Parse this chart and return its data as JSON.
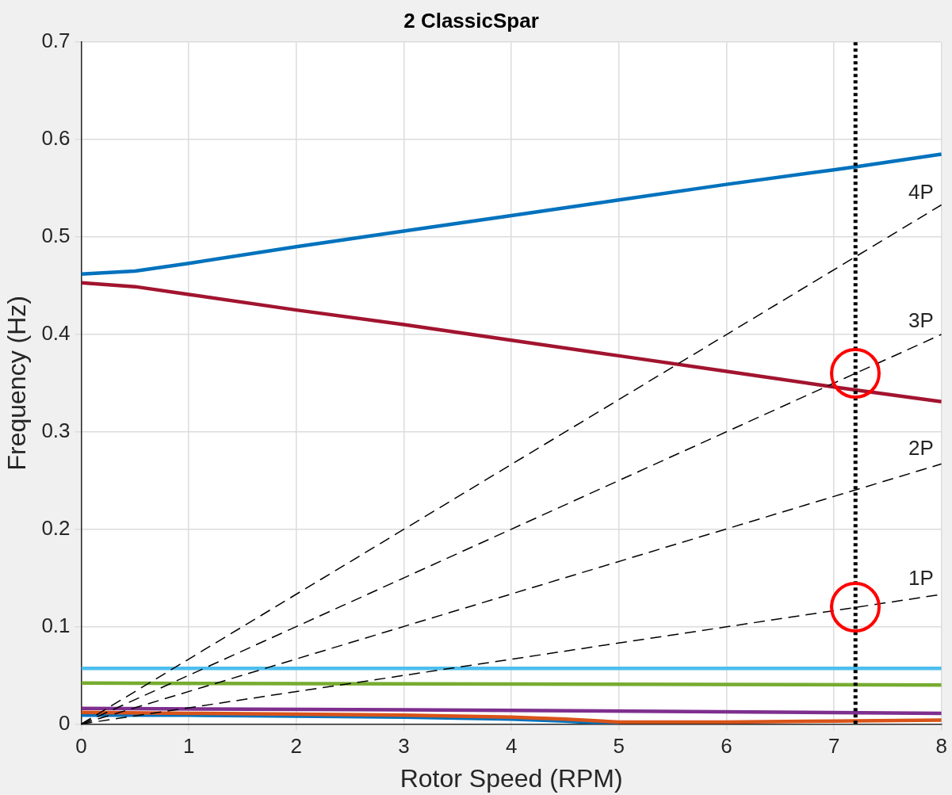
{
  "chart_data": {
    "type": "line",
    "title": "2 ClassicSpar",
    "xlabel": "Rotor Speed (RPM)",
    "ylabel": "Frequency (Hz)",
    "xlim": [
      0,
      8
    ],
    "xticks": [
      0,
      1,
      2,
      3,
      4,
      5,
      6,
      7,
      8
    ],
    "ylim": [
      0,
      0.7
    ],
    "yticks": [
      0,
      0.1,
      0.2,
      0.3,
      0.4,
      0.5,
      0.6,
      0.7
    ],
    "grid": true,
    "legend": false,
    "marker": "none",
    "series": [
      {
        "color": "#0072bd",
        "x": [
          0,
          0.5,
          1,
          2,
          3,
          4,
          5,
          6,
          7,
          7.2,
          8
        ],
        "values": [
          0.462,
          0.465,
          0.473,
          0.49,
          0.506,
          0.522,
          0.538,
          0.554,
          0.569,
          0.572,
          0.585
        ]
      },
      {
        "color": "#a2142f",
        "x": [
          0,
          0.5,
          1,
          2,
          3,
          4,
          5,
          6,
          7,
          7.2,
          8
        ],
        "values": [
          0.453,
          0.449,
          0.441,
          0.425,
          0.41,
          0.394,
          0.378,
          0.362,
          0.346,
          0.343,
          0.331
        ]
      },
      {
        "color": "#4dbeee",
        "x": [
          0,
          8
        ],
        "values": [
          0.057,
          0.057
        ]
      },
      {
        "color": "#77ac30",
        "x": [
          0,
          4,
          8
        ],
        "values": [
          0.042,
          0.041,
          0.04
        ]
      },
      {
        "color": "#7e2f8e",
        "x": [
          0,
          4,
          8
        ],
        "values": [
          0.016,
          0.014,
          0.011
        ]
      },
      {
        "color": "#0072bd",
        "x": [
          0,
          1,
          2,
          3,
          4,
          4.5,
          5
        ],
        "values": [
          0.009,
          0.009,
          0.008,
          0.007,
          0.005,
          0.003,
          0
        ]
      },
      {
        "color": "#d95319",
        "x": [
          0,
          1,
          2,
          3,
          4,
          4.5,
          5,
          5.3,
          6,
          7,
          8
        ],
        "values": [
          0.012,
          0.011,
          0.01,
          0.009,
          0.007,
          0.005,
          0.002,
          0.002,
          0.002,
          0.003,
          0.004
        ]
      },
      {
        "name": "1P",
        "color": "#000000",
        "line_style": "dashed",
        "x": [
          0,
          8
        ],
        "values": [
          0,
          0.133
        ]
      },
      {
        "name": "2P",
        "color": "#000000",
        "line_style": "dashed",
        "x": [
          0,
          8
        ],
        "values": [
          0,
          0.267
        ]
      },
      {
        "name": "3P",
        "color": "#000000",
        "line_style": "dashed",
        "x": [
          0,
          8
        ],
        "values": [
          0,
          0.4
        ]
      },
      {
        "name": "4P",
        "color": "#000000",
        "line_style": "dashed",
        "x": [
          0,
          8
        ],
        "values": [
          0,
          0.533
        ]
      }
    ],
    "ref_lines": [
      {
        "axis": "x",
        "value": 7.2,
        "color": "#000000",
        "line_style": "dotted"
      }
    ]
  }
}
